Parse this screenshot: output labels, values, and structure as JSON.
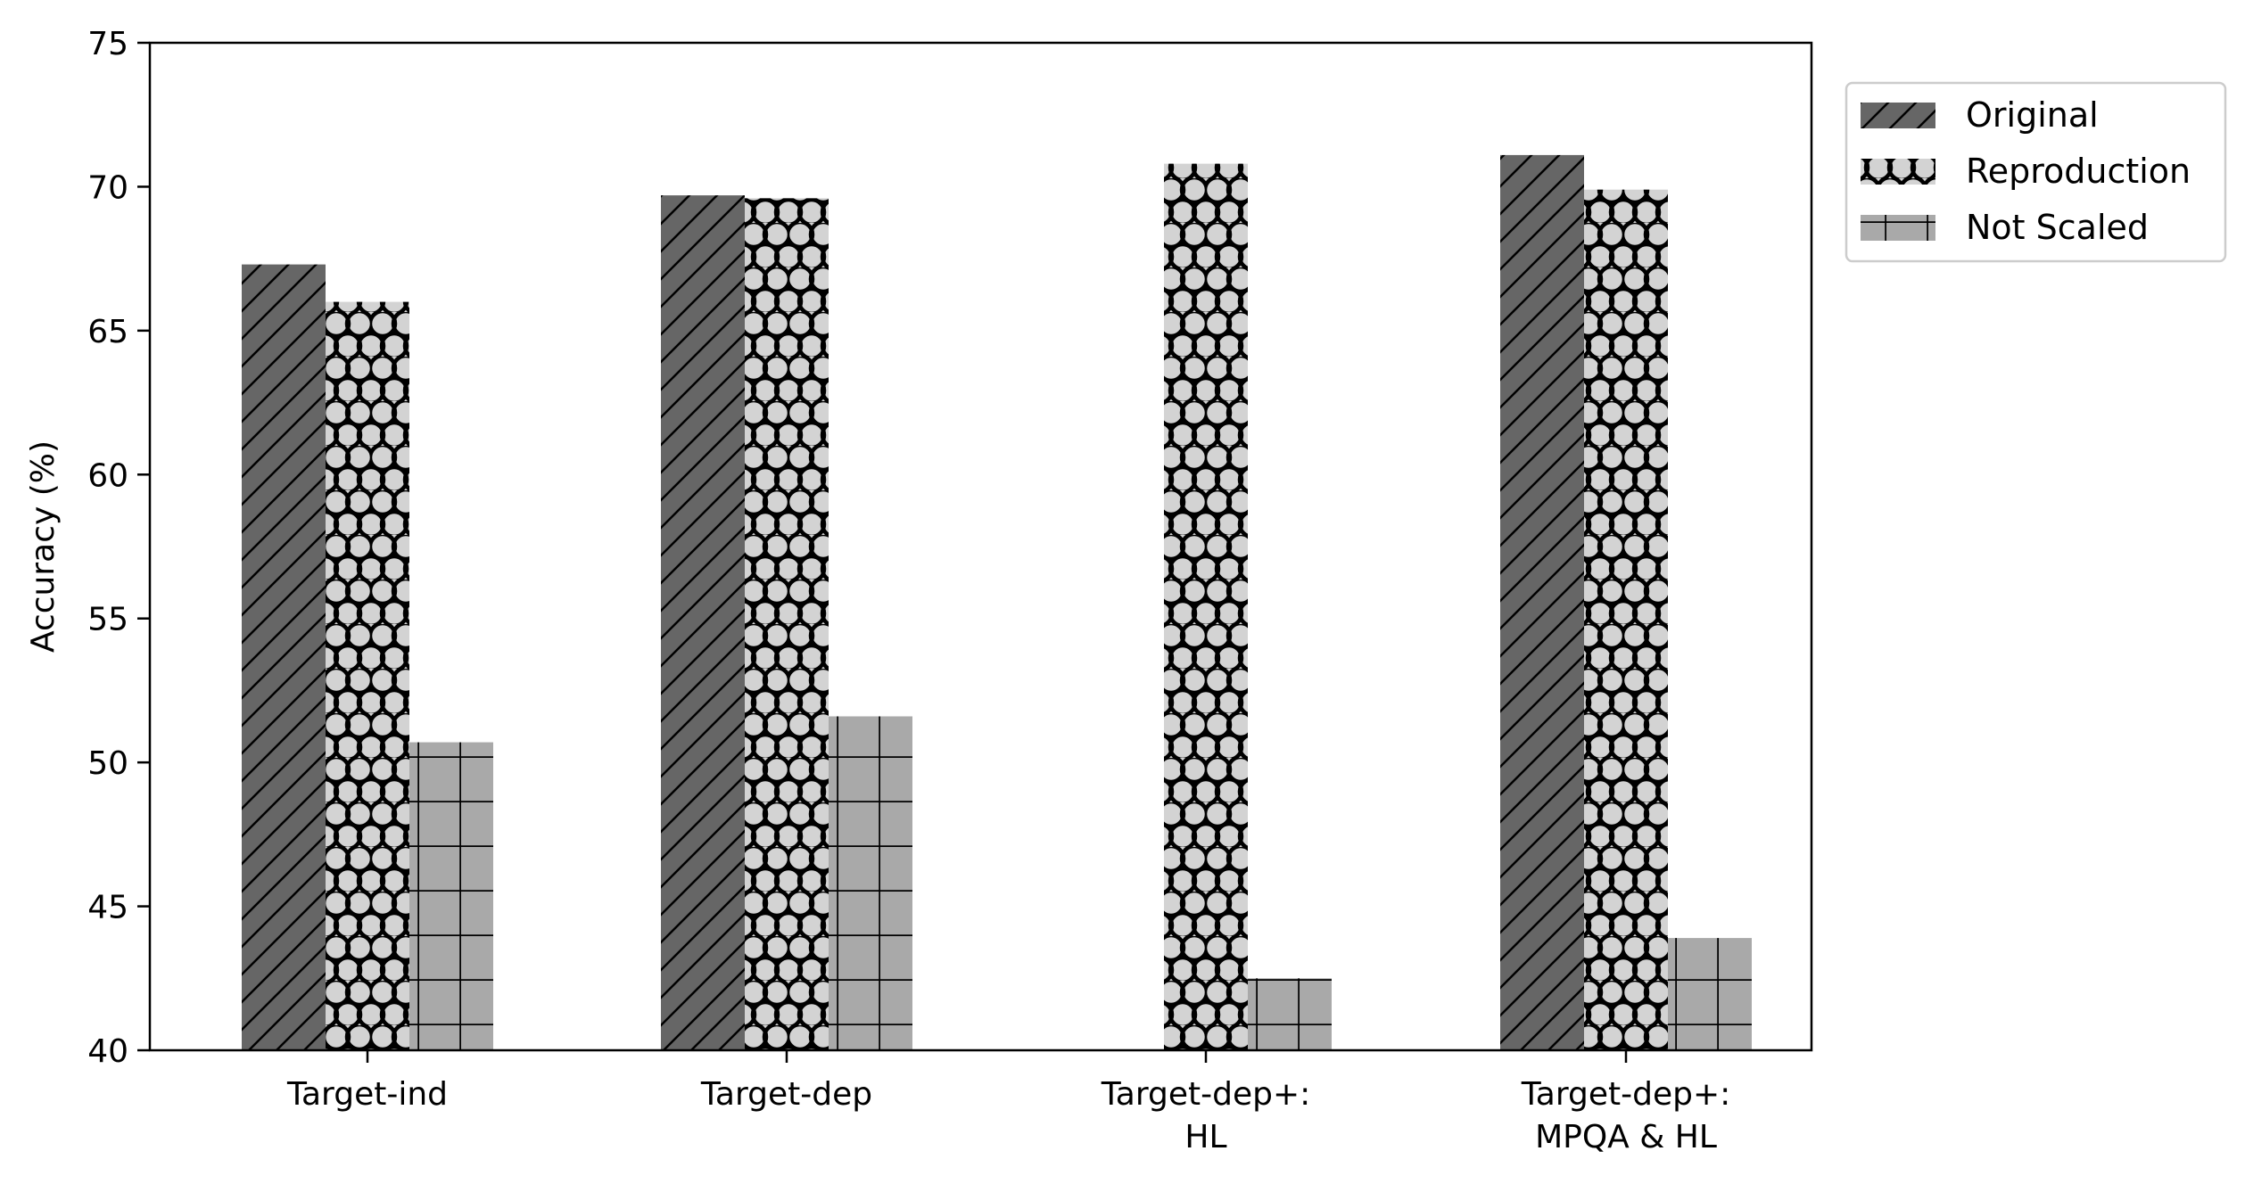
{
  "chart_data": {
    "type": "bar",
    "title": "",
    "xlabel": "",
    "ylabel": "Accuracy (%)",
    "ylim": [
      40,
      75
    ],
    "yticks": [
      40,
      45,
      50,
      55,
      60,
      65,
      70,
      75
    ],
    "grid": false,
    "legend_placement": "outside-top-right",
    "categories": [
      [
        "Target-ind"
      ],
      [
        "Target-dep"
      ],
      [
        "Target-dep+:",
        "HL"
      ],
      [
        "Target-dep+:",
        "MPQA & HL"
      ]
    ],
    "series": [
      {
        "name": "Original",
        "color": "#666666",
        "pattern": "diagonal-hatch",
        "values": [
          67.3,
          69.7,
          null,
          71.1
        ]
      },
      {
        "name": "Reproduction",
        "color": "#d3d3d3",
        "pattern": "circles",
        "values": [
          66.0,
          69.6,
          70.8,
          69.9
        ]
      },
      {
        "name": "Not Scaled",
        "color": "#a9a9a9",
        "pattern": "grid",
        "values": [
          50.7,
          51.6,
          42.5,
          43.9
        ]
      }
    ]
  }
}
